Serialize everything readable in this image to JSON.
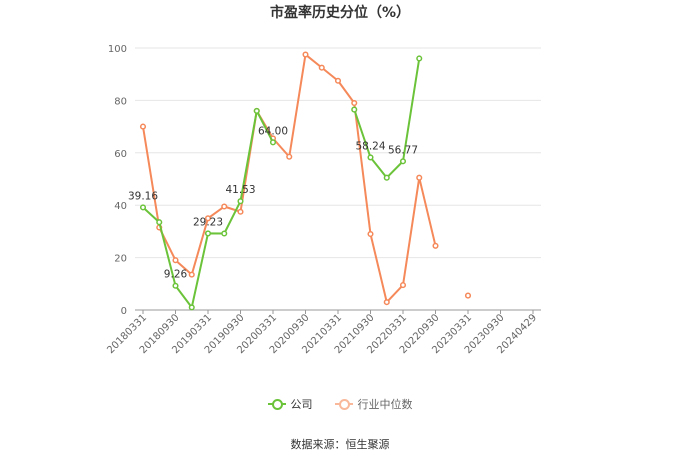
{
  "chart_data": {
    "type": "line",
    "title": "市盈率历史分位（%）",
    "x": [
      "20180331",
      "20180630",
      "20180930",
      "20181231",
      "20190331",
      "20190630",
      "20190930",
      "20191231",
      "20200331",
      "20200630",
      "20200930",
      "20201231",
      "20210331",
      "20210630",
      "20210930",
      "20211231",
      "20220331",
      "20220630",
      "20220930",
      "20221231",
      "20230331",
      "20230630",
      "20230930",
      "20231231",
      "20240429"
    ],
    "x_tick_labels": [
      "20180331",
      "20180930",
      "20190331",
      "20190930",
      "20200331",
      "20200930",
      "20210331",
      "20210930",
      "20220331",
      "20220930",
      "20230331",
      "20230930",
      "20240429"
    ],
    "y_ticks": [
      0,
      20,
      40,
      60,
      80,
      100
    ],
    "ylim": [
      0,
      100
    ],
    "grid": true,
    "legend_position": "bottom",
    "series": [
      {
        "name": "公司",
        "color": "#6bc33a",
        "values": [
          39.16,
          33.5,
          9.26,
          1.0,
          29.23,
          29.2,
          41.53,
          76.0,
          64.0,
          null,
          null,
          null,
          null,
          76.5,
          58.24,
          50.5,
          56.77,
          96.0,
          null,
          null,
          null,
          null,
          null,
          null,
          null
        ]
      },
      {
        "name": "行业中位数",
        "color": "#f5895a",
        "values": [
          70.0,
          31.5,
          19.0,
          13.5,
          35.0,
          39.5,
          37.5,
          76.0,
          65.5,
          58.5,
          97.5,
          92.5,
          87.5,
          79.0,
          29.0,
          3.0,
          9.5,
          50.5,
          24.5,
          null,
          5.5,
          null,
          null,
          null,
          null
        ]
      }
    ],
    "data_labels": [
      {
        "series": 0,
        "index": 0,
        "text": "39.16"
      },
      {
        "series": 0,
        "index": 2,
        "text": "9.26"
      },
      {
        "series": 0,
        "index": 4,
        "text": "29.23"
      },
      {
        "series": 0,
        "index": 6,
        "text": "41.53"
      },
      {
        "series": 0,
        "index": 8,
        "text": "64.00"
      },
      {
        "series": 0,
        "index": 14,
        "text": "58.24"
      },
      {
        "series": 0,
        "index": 16,
        "text": "56.77"
      }
    ]
  },
  "legend": {
    "company": {
      "label": "公司",
      "color": "#6bc33a"
    },
    "industry": {
      "label": "行业中位数",
      "color": "#f5895a"
    }
  },
  "source": "数据来源：恒生聚源"
}
